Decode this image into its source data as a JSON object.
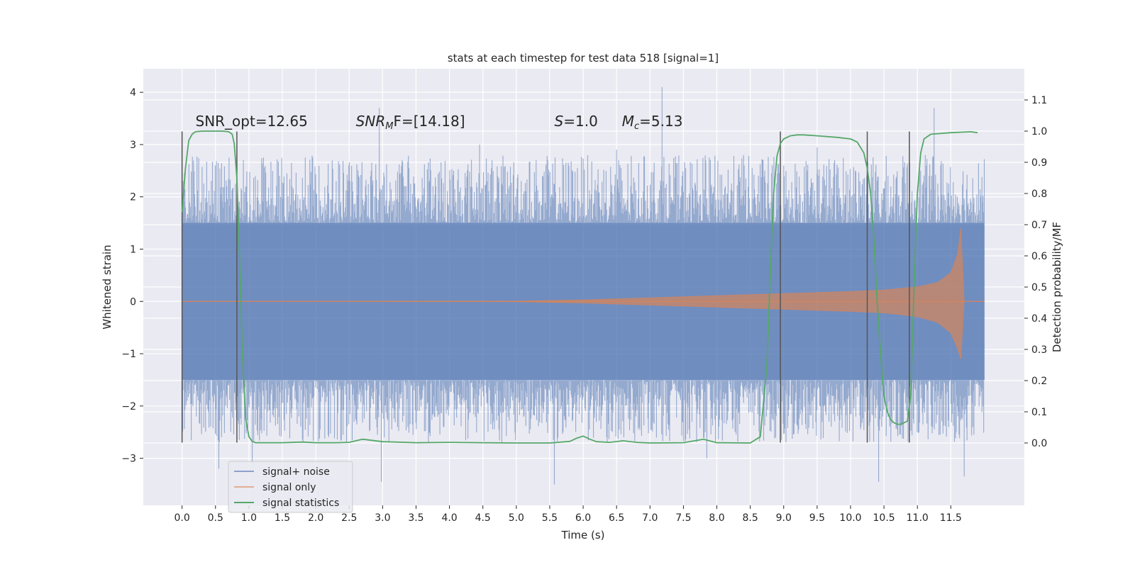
{
  "chart_data": {
    "type": "line",
    "title": "stats at each timestep for test data 518 [signal=1]",
    "xlabel": "Time (s)",
    "ylabel": "Whitened strain",
    "ylabel_right": "Detection probability/MF",
    "xlim": [
      -0.58,
      12.6
    ],
    "ylim": [
      -3.9,
      4.45
    ],
    "ylim_right": [
      -0.2,
      1.2
    ],
    "x_ticks": [
      0.0,
      0.5,
      1.0,
      1.5,
      2.0,
      2.5,
      3.0,
      3.5,
      4.0,
      4.5,
      5.0,
      5.5,
      6.0,
      6.5,
      7.0,
      7.5,
      8.0,
      8.5,
      9.0,
      9.5,
      10.0,
      10.5,
      11.0,
      11.5
    ],
    "x_tick_labels": [
      "0.0",
      "0.5",
      "1.0",
      "1.5",
      "2.0",
      "2.5",
      "3.0",
      "3.5",
      "4.0",
      "4.5",
      "5.0",
      "5.5",
      "6.0",
      "6.5",
      "7.0",
      "7.5",
      "8.0",
      "8.5",
      "9.0",
      "9.5",
      "10.0",
      "10.5",
      "11.0",
      "11.5"
    ],
    "y_ticks": [
      -3,
      -2,
      -1,
      0,
      1,
      2,
      3,
      4
    ],
    "y_tick_labels": [
      "−3",
      "−2",
      "−1",
      "0",
      "1",
      "2",
      "3",
      "4"
    ],
    "y_ticks_right": [
      0.0,
      0.1,
      0.2,
      0.3,
      0.4,
      0.5,
      0.6,
      0.7,
      0.8,
      0.9,
      1.0,
      1.1
    ],
    "y_tick_labels_right": [
      "0.0",
      "0.1",
      "0.2",
      "0.3",
      "0.4",
      "0.5",
      "0.6",
      "0.7",
      "0.8",
      "0.9",
      "1.0",
      "1.1"
    ],
    "grid": true,
    "legend_placement": "lower-left",
    "series": [
      {
        "name": "signal+ noise",
        "color": "#4c72b0",
        "kind": "noise-band",
        "t_range": [
          0.0,
          12.0
        ],
        "core_amplitude": 1.5,
        "typical_peak": 2.3,
        "max_peak": 4.1,
        "min_trough": -3.5
      },
      {
        "name": "signal only",
        "color": "#dd8452",
        "kind": "chirp-envelope",
        "envelope": {
          "x": [
            0.0,
            5.0,
            6.0,
            7.0,
            8.0,
            9.0,
            10.0,
            10.5,
            11.0,
            11.3,
            11.5,
            11.6,
            11.65,
            11.7,
            12.0
          ],
          "upper": [
            0.0,
            0.005,
            0.03,
            0.07,
            0.11,
            0.15,
            0.19,
            0.22,
            0.28,
            0.36,
            0.55,
            0.9,
            1.4,
            0.0,
            0.0
          ],
          "lower": [
            0.0,
            -0.005,
            -0.03,
            -0.07,
            -0.11,
            -0.15,
            -0.19,
            -0.22,
            -0.29,
            -0.4,
            -0.6,
            -0.9,
            -1.1,
            0.0,
            0.0
          ]
        }
      },
      {
        "name": "signal statistics",
        "color": "#55a868",
        "axis": "right",
        "x": [
          0.0,
          0.05,
          0.1,
          0.15,
          0.2,
          0.3,
          0.4,
          0.5,
          0.6,
          0.7,
          0.75,
          0.78,
          0.82,
          0.86,
          0.9,
          0.95,
          1.0,
          1.05,
          1.1,
          1.2,
          1.5,
          1.8,
          2.0,
          2.3,
          2.5,
          2.7,
          3.0,
          3.5,
          4.0,
          4.5,
          5.0,
          5.5,
          5.8,
          5.9,
          6.0,
          6.1,
          6.2,
          6.4,
          6.6,
          6.8,
          7.0,
          7.5,
          7.8,
          8.0,
          8.5,
          8.65,
          8.75,
          8.8,
          8.85,
          8.9,
          8.95,
          9.0,
          9.1,
          9.2,
          9.3,
          9.5,
          9.8,
          10.0,
          10.1,
          10.2,
          10.25,
          10.3,
          10.35,
          10.4,
          10.45,
          10.5,
          10.55,
          10.6,
          10.65,
          10.7,
          10.75,
          10.8,
          10.85,
          10.9,
          10.95,
          11.0,
          11.05,
          11.1,
          11.2,
          11.5,
          11.8,
          11.9
        ],
        "y": [
          0.74,
          0.88,
          0.97,
          0.99,
          0.998,
          1.0,
          1.0,
          1.0,
          1.0,
          0.998,
          0.99,
          0.96,
          0.85,
          0.6,
          0.3,
          0.08,
          0.02,
          0.005,
          0.001,
          0.001,
          0.001,
          0.003,
          0.001,
          0.001,
          0.002,
          0.012,
          0.004,
          0.001,
          0.002,
          0.001,
          0.0,
          0.0,
          0.005,
          0.015,
          0.022,
          0.012,
          0.004,
          0.002,
          0.007,
          0.002,
          0.0,
          0.001,
          0.012,
          0.001,
          0.0,
          0.02,
          0.25,
          0.55,
          0.8,
          0.92,
          0.96,
          0.975,
          0.985,
          0.988,
          0.988,
          0.985,
          0.98,
          0.975,
          0.965,
          0.93,
          0.88,
          0.8,
          0.65,
          0.45,
          0.28,
          0.15,
          0.1,
          0.075,
          0.065,
          0.06,
          0.06,
          0.065,
          0.07,
          0.15,
          0.5,
          0.8,
          0.93,
          0.975,
          0.99,
          0.995,
          0.998,
          0.995
        ]
      }
    ],
    "vertical_markers": {
      "color": "#555555",
      "x": [
        0.0,
        0.82,
        8.95,
        10.25,
        10.88
      ],
      "y_top": 3.25,
      "y_bottom": -2.7
    },
    "annotations": [
      {
        "id": "snr-opt",
        "text": "SNR_opt=12.65",
        "x": 0.2,
        "y": 3.3
      },
      {
        "id": "snr-mf",
        "pre": "SNR",
        "sub": "M",
        "post": "F=[14.18]",
        "italic": true,
        "x": 2.6,
        "y": 3.3
      },
      {
        "id": "s-val",
        "pre": "S",
        "sub": "",
        "post": "=1.0",
        "italic": true,
        "x": 5.57,
        "y": 3.3
      },
      {
        "id": "mc-val",
        "pre": "M",
        "sub": "c",
        "post": "=5.13",
        "italic": true,
        "x": 6.58,
        "y": 3.3
      }
    ]
  }
}
